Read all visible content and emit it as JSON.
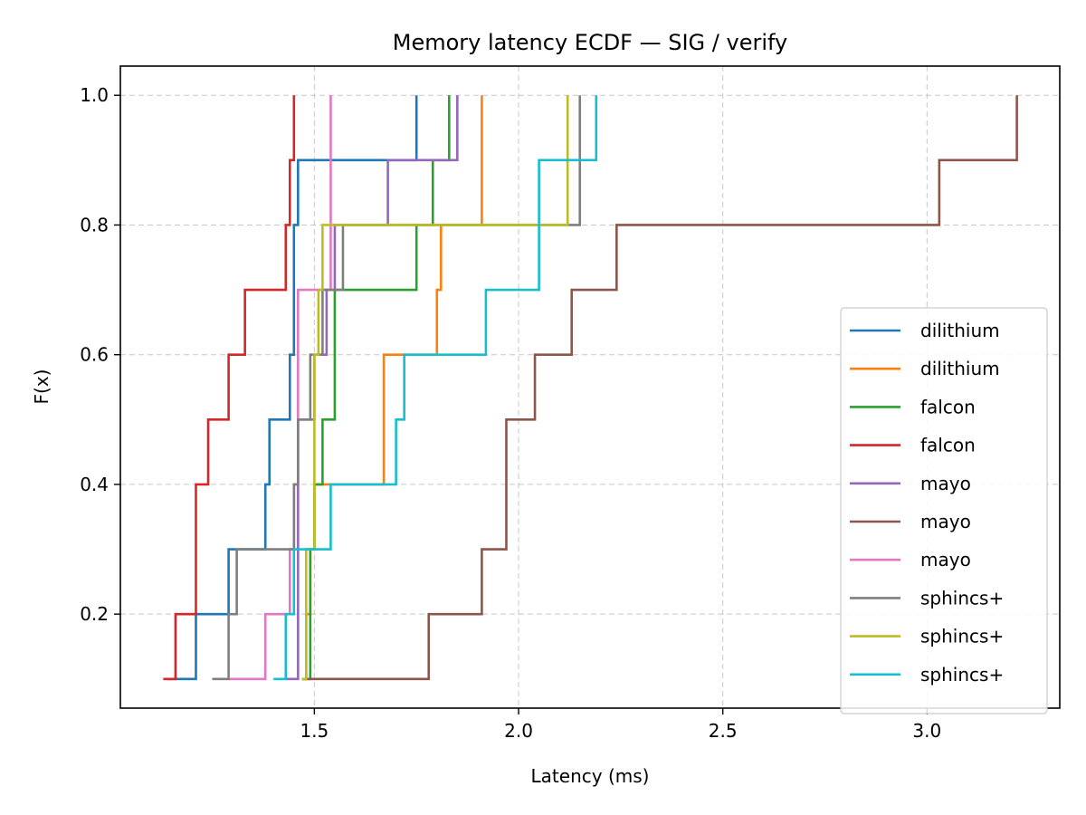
{
  "chart_data": {
    "type": "line",
    "step": "post",
    "title": "Memory latency ECDF — SIG / verify",
    "xlabel": "Latency (ms)",
    "ylabel": "F(x)",
    "xlim": [
      1.025,
      3.325
    ],
    "ylim": [
      0.055,
      1.045
    ],
    "xticks": [
      1.5,
      2.0,
      2.5,
      3.0
    ],
    "xtick_labels": [
      "1.5",
      "2.0",
      "2.5",
      "3.0"
    ],
    "yticks": [
      0.2,
      0.4,
      0.6,
      0.8,
      1.0
    ],
    "ytick_labels": [
      "0.2",
      "0.4",
      "0.6",
      "0.8",
      "1.0"
    ],
    "grid": true,
    "legend_position": "lower-right",
    "series": [
      {
        "name": "dilithium",
        "color": "#1f77b4",
        "x": [
          1.14,
          1.21,
          1.29,
          1.38,
          1.39,
          1.44,
          1.45,
          1.45,
          1.46,
          1.75
        ],
        "y": [
          0.1,
          0.2,
          0.3,
          0.4,
          0.5,
          0.6,
          0.7,
          0.8,
          0.9,
          1.0
        ]
      },
      {
        "name": "dilithium",
        "color": "#ff7f0e",
        "x": [
          1.47,
          1.48,
          1.49,
          1.5,
          1.67,
          1.8,
          1.81,
          1.91
        ],
        "y": [
          0.1,
          0.2,
          0.3,
          0.4,
          0.6,
          0.7,
          0.8,
          1.0
        ]
      },
      {
        "name": "falcon",
        "color": "#2ca02c",
        "x": [
          1.47,
          1.49,
          1.5,
          1.52,
          1.55,
          1.75,
          1.79,
          1.83
        ],
        "y": [
          0.1,
          0.3,
          0.4,
          0.5,
          0.7,
          0.8,
          0.9,
          1.0
        ]
      },
      {
        "name": "falcon",
        "color": "#d62728",
        "x": [
          1.13,
          1.16,
          1.21,
          1.24,
          1.29,
          1.33,
          1.43,
          1.44,
          1.45
        ],
        "y": [
          0.1,
          0.2,
          0.4,
          0.5,
          0.6,
          0.7,
          0.8,
          0.9,
          1.0
        ]
      },
      {
        "name": "mayo",
        "color": "#9467bd",
        "x": [
          1.43,
          1.46,
          1.5,
          1.53,
          1.55,
          1.68,
          1.85
        ],
        "y": [
          0.1,
          0.5,
          0.6,
          0.7,
          0.8,
          0.9,
          1.0
        ]
      },
      {
        "name": "mayo",
        "color": "#8c564b",
        "x": [
          1.47,
          1.78,
          1.91,
          1.97,
          1.97,
          2.04,
          2.13,
          2.24,
          3.03,
          3.22
        ],
        "y": [
          0.1,
          0.2,
          0.3,
          0.4,
          0.5,
          0.6,
          0.7,
          0.8,
          0.9,
          1.0
        ]
      },
      {
        "name": "mayo",
        "color": "#e377c2",
        "x": [
          1.29,
          1.38,
          1.44,
          1.45,
          1.46,
          1.54
        ],
        "y": [
          0.1,
          0.2,
          0.3,
          0.4,
          0.7,
          1.0
        ]
      },
      {
        "name": "sphincs+",
        "color": "#7f7f7f",
        "x": [
          1.25,
          1.29,
          1.31,
          1.45,
          1.46,
          1.49,
          1.52,
          1.57,
          2.15
        ],
        "y": [
          0.1,
          0.2,
          0.3,
          0.4,
          0.5,
          0.6,
          0.7,
          0.8,
          1.0
        ]
      },
      {
        "name": "sphincs+",
        "color": "#bcbd22",
        "x": [
          1.47,
          1.48,
          1.5,
          1.51,
          1.52,
          2.12
        ],
        "y": [
          0.1,
          0.3,
          0.6,
          0.7,
          0.8,
          1.0
        ]
      },
      {
        "name": "sphincs+",
        "color": "#17becf",
        "x": [
          1.4,
          1.43,
          1.45,
          1.54,
          1.7,
          1.72,
          1.92,
          2.05,
          2.19
        ],
        "y": [
          0.1,
          0.2,
          0.3,
          0.4,
          0.5,
          0.6,
          0.7,
          0.9,
          1.0
        ]
      }
    ]
  }
}
